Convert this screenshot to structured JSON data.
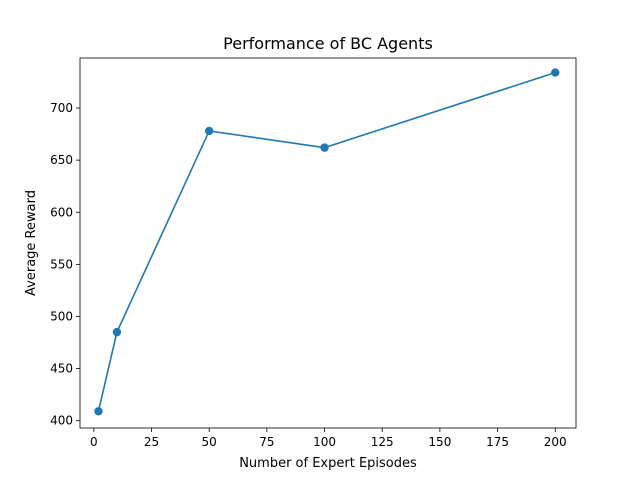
{
  "chart_data": {
    "type": "line",
    "title": "Performance of BC Agents",
    "xlabel": "Number of Expert Episodes",
    "ylabel": "Average Reward",
    "xlim": [
      -6,
      209
    ],
    "ylim": [
      393,
      748
    ],
    "xticks": [
      0,
      25,
      50,
      75,
      100,
      125,
      150,
      175,
      200
    ],
    "yticks": [
      400,
      450,
      500,
      550,
      600,
      650,
      700
    ],
    "grid": false,
    "legend": "none",
    "series": [
      {
        "color": "#1f77b4",
        "marker": "circle",
        "x": [
          2,
          10,
          50,
          100,
          200
        ],
        "y": [
          409,
          485,
          678,
          662,
          734
        ]
      }
    ]
  }
}
